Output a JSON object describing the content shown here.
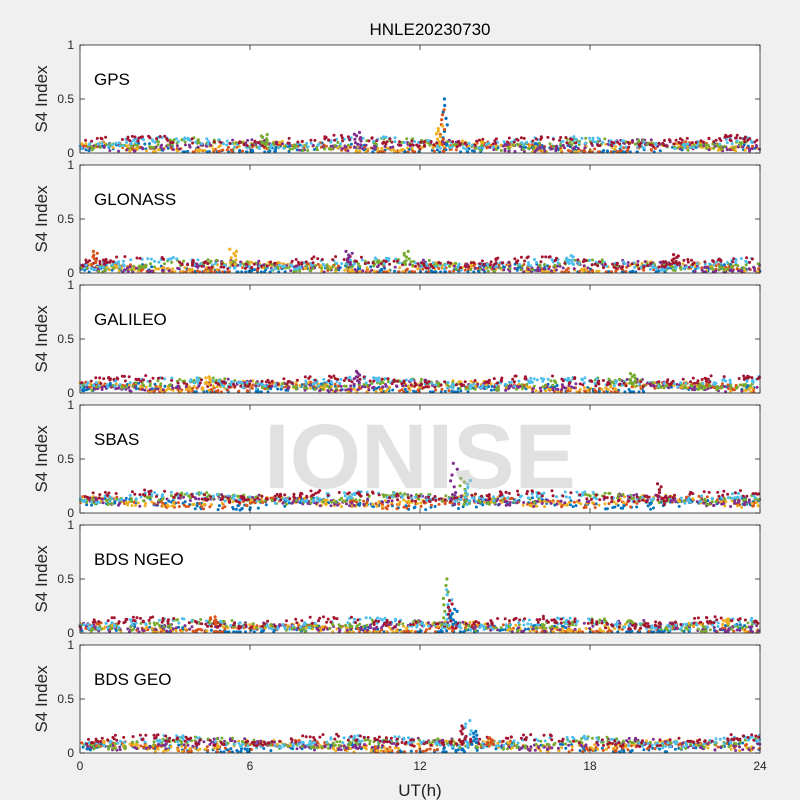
{
  "chart_data": {
    "type": "scatter",
    "title": "HNLE20230730",
    "xlabel": "UT(h)",
    "ylabel": "S4 Index",
    "xlim": [
      0,
      24
    ],
    "ylim": [
      0,
      1
    ],
    "x_ticks": [
      "0",
      "6",
      "12",
      "18",
      "24"
    ],
    "y_ticks": [
      "0",
      "0.5",
      "1"
    ],
    "watermark": "IONISE",
    "grid": false,
    "series_colors": [
      "#0072BD",
      "#D95319",
      "#EDB120",
      "#7E2F8E",
      "#77AC30",
      "#4DBEEE",
      "#A2142F"
    ],
    "panels": [
      {
        "label": "GPS",
        "baseline": 0.07,
        "spikes": [
          {
            "x": 12.9,
            "y": 0.5
          },
          {
            "x": 12.8,
            "y": 0.4
          },
          {
            "x": 12.7,
            "y": 0.25
          },
          {
            "x": 9.8,
            "y": 0.19
          },
          {
            "x": 6.5,
            "y": 0.17
          }
        ]
      },
      {
        "label": "GLONASS",
        "baseline": 0.06,
        "spikes": [
          {
            "x": 0.5,
            "y": 0.2
          },
          {
            "x": 5.4,
            "y": 0.22
          },
          {
            "x": 9.5,
            "y": 0.2
          },
          {
            "x": 11.5,
            "y": 0.2
          },
          {
            "x": 17.3,
            "y": 0.16
          },
          {
            "x": 21.0,
            "y": 0.17
          }
        ]
      },
      {
        "label": "GALILEO",
        "baseline": 0.07,
        "spikes": [
          {
            "x": 4.5,
            "y": 0.15
          },
          {
            "x": 9.8,
            "y": 0.2
          },
          {
            "x": 19.5,
            "y": 0.18
          }
        ]
      },
      {
        "label": "SBAS",
        "baseline": 0.12,
        "spikes": [
          {
            "x": 13.2,
            "y": 0.46
          },
          {
            "x": 13.5,
            "y": 0.32
          },
          {
            "x": 13.7,
            "y": 0.3
          },
          {
            "x": 20.5,
            "y": 0.27
          }
        ]
      },
      {
        "label": "BDS NGEO",
        "baseline": 0.06,
        "spikes": [
          {
            "x": 12.9,
            "y": 0.5
          },
          {
            "x": 13.0,
            "y": 0.4
          },
          {
            "x": 13.1,
            "y": 0.3
          },
          {
            "x": 13.2,
            "y": 0.22
          },
          {
            "x": 4.7,
            "y": 0.15
          },
          {
            "x": 22.8,
            "y": 0.13
          }
        ]
      },
      {
        "label": "BDS GEO",
        "baseline": 0.08,
        "spikes": [
          {
            "x": 13.7,
            "y": 0.3
          },
          {
            "x": 13.5,
            "y": 0.25
          },
          {
            "x": 13.9,
            "y": 0.2
          },
          {
            "x": 14.5,
            "y": 0.14
          }
        ]
      }
    ]
  }
}
